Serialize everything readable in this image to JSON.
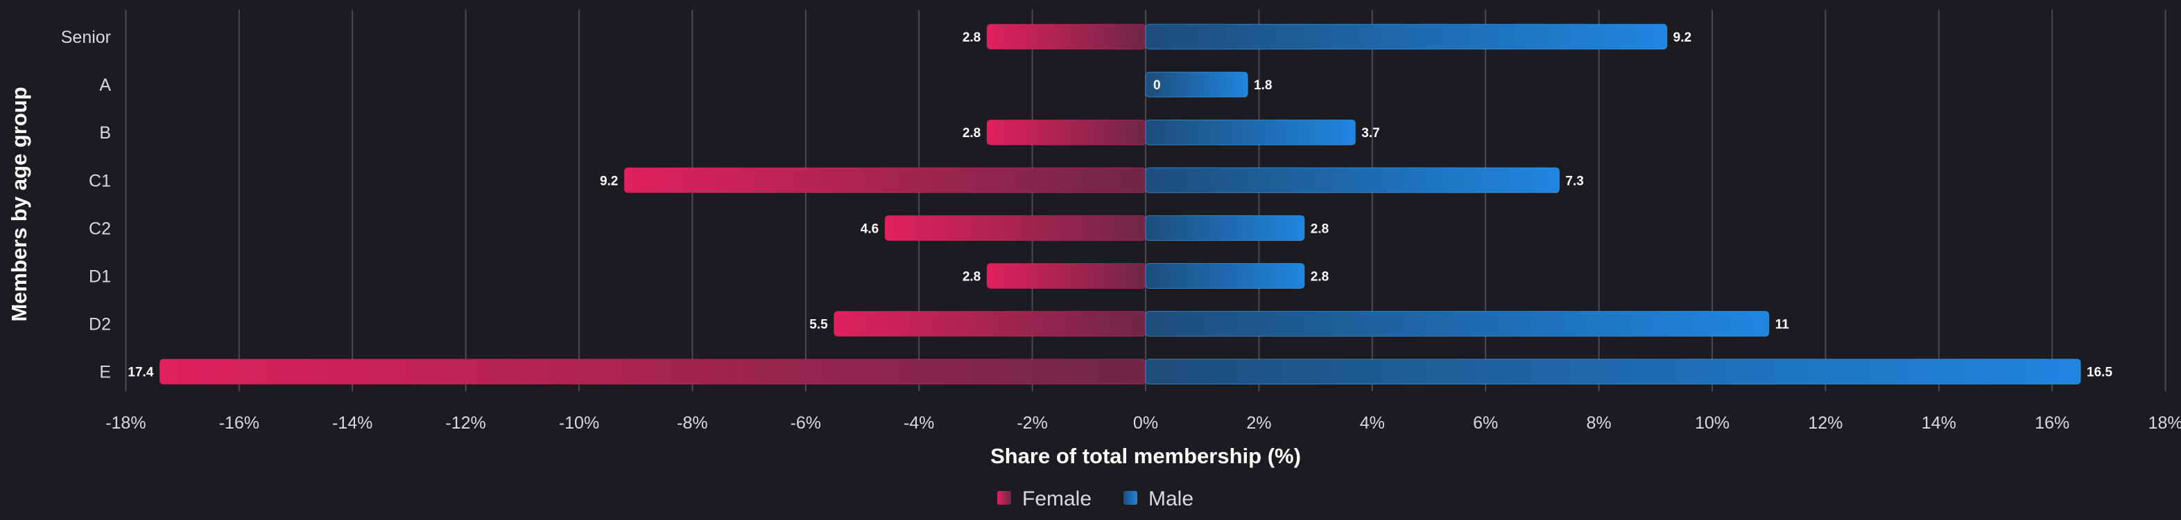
{
  "chart_data": {
    "type": "bar",
    "orientation": "horizontal",
    "layout": "diverging",
    "categories": [
      "Senior",
      "A",
      "B",
      "C1",
      "C2",
      "D1",
      "D2",
      "E"
    ],
    "series": [
      {
        "name": "Female",
        "values": [
          -2.8,
          0,
          -2.8,
          -9.2,
          -4.6,
          -2.8,
          -5.5,
          -17.4
        ],
        "labels": [
          "2.8",
          "",
          "2.8",
          "9.2",
          "4.6",
          "2.8",
          "5.5",
          "17.4"
        ],
        "color": "#e0215e"
      },
      {
        "name": "Male",
        "values": [
          9.2,
          1.8,
          3.7,
          7.3,
          2.8,
          2.8,
          11,
          16.5
        ],
        "labels": [
          "9.2",
          "1.8",
          "3.7",
          "7.3",
          "2.8",
          "2.8",
          "11",
          "16.5"
        ],
        "color": "#1f86e0"
      }
    ],
    "zero_label_A": "0",
    "xlabel": "Share of total membership (%)",
    "ylabel": "Members by age group",
    "xlim": [
      -18,
      18
    ],
    "xticks": [
      "-18%",
      "-16%",
      "-14%",
      "-12%",
      "-10%",
      "-8%",
      "-6%",
      "-4%",
      "-2%",
      "0%",
      "2%",
      "4%",
      "6%",
      "8%",
      "10%",
      "12%",
      "14%",
      "16%",
      "18%"
    ],
    "grid": "vertical",
    "legend": "bottom-center"
  }
}
